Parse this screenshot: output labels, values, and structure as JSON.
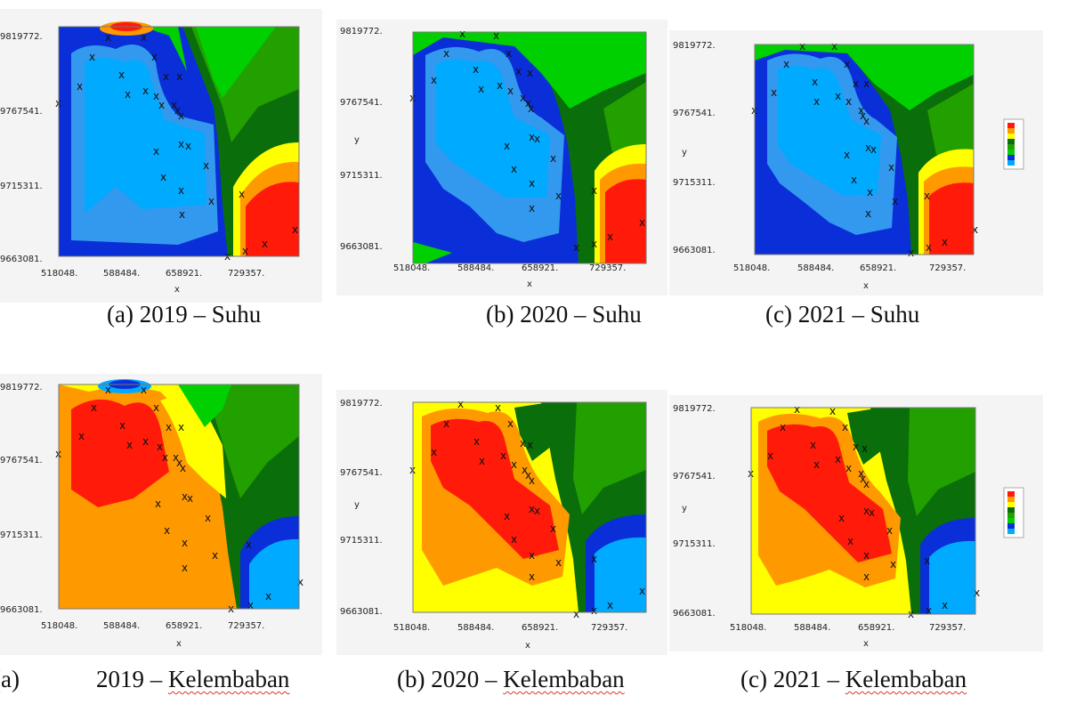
{
  "axes": {
    "x_ticks": [
      "518048.",
      "588484.",
      "658921.",
      "729357."
    ],
    "y_ticks": [
      "9819772.",
      "9767541.",
      "9715311.",
      "9663081."
    ],
    "x_label": "x",
    "y_label": "y"
  },
  "captions": {
    "suhu_2019": "(a)   2019 – Suhu",
    "suhu_2020": "(b) 2020 – Suhu",
    "suhu_2021": "(c) 2021 – Suhu",
    "kel_2019_prefix": "(a)",
    "kel_2019": "2019 – ",
    "kel_2020": "(b) 2020 – ",
    "kel_2021": "(c) 2021 – ",
    "kel_word": "Kelembaban"
  },
  "palettes": {
    "suhu": [
      "#00aaff",
      "#3399ee",
      "#0a2fd8",
      "#00d000",
      "#22a000",
      "#0a6e0a",
      "#ffff00",
      "#ff9900",
      "#ff1a0a"
    ],
    "kelembaban": [
      "#ff1a0a",
      "#ff9900",
      "#ffff00",
      "#0a6e0a",
      "#22a000",
      "#00d000",
      "#0a2fd8",
      "#00aaff"
    ]
  }
}
